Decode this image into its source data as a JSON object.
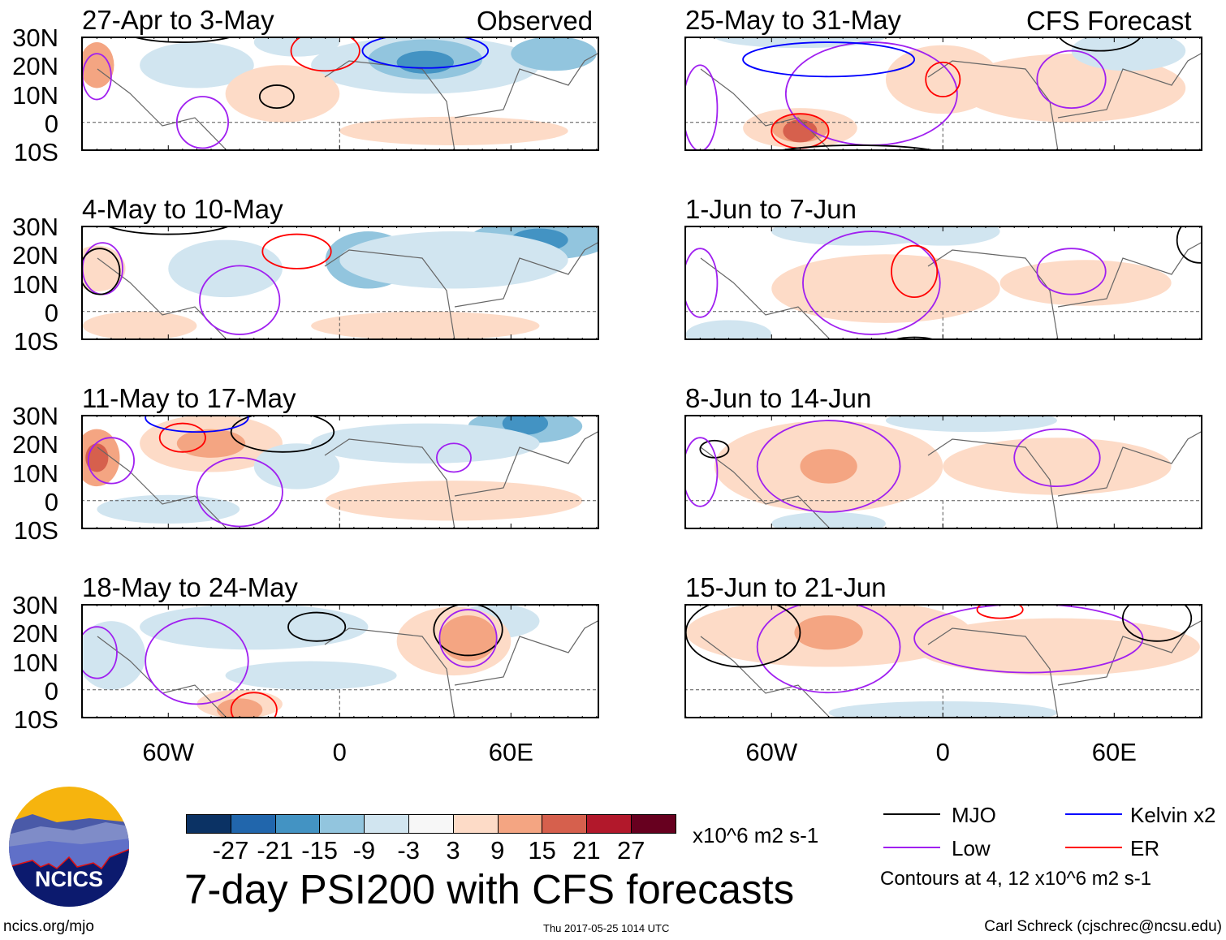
{
  "header": {
    "left_label": "Observed",
    "right_label": "CFS Forecast"
  },
  "lat_ticks": [
    "30N",
    "20N",
    "10N",
    "0",
    "10S"
  ],
  "lon_ticks": [
    "60W",
    "0",
    "60E"
  ],
  "panels": [
    {
      "title": "27-Apr to 3-May",
      "blobs": [
        [
          30,
          20,
          40,
          10,
          -1
        ],
        [
          30,
          22,
          20,
          7,
          -2
        ],
        [
          30,
          21,
          10,
          4,
          -3
        ],
        [
          -50,
          20,
          20,
          8,
          -1
        ],
        [
          75,
          24,
          15,
          6,
          -2
        ],
        [
          -20,
          10,
          20,
          10,
          1
        ],
        [
          40,
          -3,
          40,
          5,
          1
        ],
        [
          -85,
          20,
          6,
          8,
          2
        ],
        [
          -15,
          28,
          15,
          5,
          -1
        ]
      ],
      "contours": [
        [
          -22,
          9,
          6,
          4,
          "mjo"
        ],
        [
          -48,
          0,
          9,
          9,
          "low"
        ],
        [
          -85,
          16,
          5,
          8,
          "low"
        ],
        [
          -55,
          32,
          20,
          4,
          "mjo"
        ],
        [
          -5,
          25,
          12,
          7,
          "er"
        ],
        [
          30,
          25,
          22,
          6,
          "kelvin"
        ]
      ]
    },
    {
      "title": "4-May to 10-May",
      "blobs": [
        [
          10,
          18,
          15,
          10,
          -2
        ],
        [
          10,
          18,
          7,
          5,
          -3
        ],
        [
          70,
          25,
          25,
          7,
          -2
        ],
        [
          70,
          25,
          10,
          4,
          -3
        ],
        [
          -40,
          15,
          20,
          10,
          -1
        ],
        [
          40,
          18,
          40,
          10,
          -1
        ],
        [
          -85,
          15,
          10,
          8,
          1
        ],
        [
          30,
          -5,
          40,
          5,
          1
        ],
        [
          -70,
          -5,
          20,
          5,
          1
        ]
      ],
      "contours": [
        [
          -35,
          4,
          14,
          12,
          "low"
        ],
        [
          -83,
          15,
          7,
          9,
          "low"
        ],
        [
          -84,
          14,
          7,
          8,
          "mjo"
        ],
        [
          -60,
          33,
          25,
          6,
          "mjo"
        ],
        [
          -15,
          21,
          12,
          6,
          "er"
        ]
      ]
    },
    {
      "title": "11-May to 17-May",
      "blobs": [
        [
          -45,
          20,
          25,
          10,
          1
        ],
        [
          -45,
          20,
          12,
          5,
          2
        ],
        [
          -85,
          15,
          8,
          10,
          2
        ],
        [
          -85,
          15,
          4,
          5,
          3
        ],
        [
          65,
          26,
          20,
          6,
          -2
        ],
        [
          65,
          27,
          8,
          4,
          -3
        ],
        [
          30,
          20,
          40,
          7,
          -1
        ],
        [
          -15,
          12,
          15,
          8,
          -1
        ],
        [
          40,
          0,
          45,
          7,
          1
        ],
        [
          -60,
          -3,
          25,
          5,
          -1
        ]
      ],
      "contours": [
        [
          -20,
          24,
          18,
          7,
          "mjo"
        ],
        [
          -35,
          3,
          15,
          12,
          "low"
        ],
        [
          -80,
          14,
          8,
          8,
          "low"
        ],
        [
          -55,
          22,
          8,
          5,
          "er"
        ],
        [
          40,
          15,
          6,
          5,
          "low"
        ],
        [
          -50,
          29,
          18,
          5,
          "kelvin"
        ]
      ]
    },
    {
      "title": "18-May to 24-May",
      "blobs": [
        [
          -30,
          22,
          40,
          8,
          -1
        ],
        [
          55,
          24,
          15,
          6,
          -1
        ],
        [
          40,
          17,
          20,
          12,
          1
        ],
        [
          45,
          18,
          10,
          8,
          2
        ],
        [
          -35,
          -5,
          15,
          5,
          1
        ],
        [
          -35,
          -7,
          8,
          4,
          2
        ],
        [
          -80,
          12,
          12,
          12,
          -1
        ],
        [
          -10,
          5,
          30,
          5,
          -1
        ]
      ],
      "contours": [
        [
          -50,
          10,
          18,
          15,
          "low"
        ],
        [
          -85,
          13,
          7,
          9,
          "low"
        ],
        [
          -8,
          22,
          10,
          5,
          "mjo"
        ],
        [
          45,
          21,
          12,
          9,
          "mjo"
        ],
        [
          45,
          18,
          10,
          10,
          "low"
        ],
        [
          -30,
          -7,
          8,
          6,
          "er"
        ]
      ]
    },
    {
      "title": "25-May to 31-May",
      "blobs": [
        [
          -50,
          -2,
          20,
          7,
          1
        ],
        [
          -50,
          -2,
          10,
          5,
          2
        ],
        [
          -50,
          -3,
          6,
          4,
          3
        ],
        [
          0,
          15,
          20,
          12,
          1
        ],
        [
          45,
          12,
          40,
          12,
          1
        ],
        [
          65,
          25,
          20,
          7,
          -1
        ],
        [
          -50,
          30,
          30,
          4,
          -1
        ]
      ],
      "contours": [
        [
          -25,
          10,
          30,
          18,
          "low"
        ],
        [
          -85,
          5,
          6,
          15,
          "low"
        ],
        [
          45,
          15,
          12,
          10,
          "low"
        ],
        [
          0,
          15,
          6,
          6,
          "er"
        ],
        [
          -50,
          -3,
          10,
          6,
          "er"
        ],
        [
          -30,
          -13,
          35,
          5,
          "mjo"
        ],
        [
          55,
          32,
          15,
          7,
          "mjo"
        ],
        [
          -40,
          22,
          30,
          6,
          "kelvin"
        ]
      ]
    },
    {
      "title": "1-Jun to 7-Jun",
      "blobs": [
        [
          -20,
          8,
          40,
          12,
          1
        ],
        [
          50,
          10,
          30,
          8,
          1
        ],
        [
          -30,
          28,
          30,
          5,
          -1
        ],
        [
          0,
          28,
          20,
          5,
          -1
        ],
        [
          -75,
          -8,
          15,
          5,
          -1
        ]
      ],
      "contours": [
        [
          -25,
          10,
          24,
          18,
          "low"
        ],
        [
          45,
          14,
          12,
          8,
          "low"
        ],
        [
          -85,
          10,
          6,
          12,
          "low"
        ],
        [
          -10,
          14,
          8,
          9,
          "er"
        ],
        [
          -10,
          -12,
          10,
          3,
          "mjo"
        ],
        [
          90,
          25,
          8,
          8,
          "mjo"
        ]
      ]
    },
    {
      "title": "8-Jun to 14-Jun",
      "blobs": [
        [
          -40,
          12,
          40,
          16,
          1
        ],
        [
          -40,
          12,
          10,
          6,
          2
        ],
        [
          40,
          12,
          40,
          10,
          1
        ],
        [
          10,
          28,
          30,
          4,
          -1
        ],
        [
          -40,
          -8,
          20,
          4,
          -1
        ]
      ],
      "contours": [
        [
          -40,
          12,
          25,
          16,
          "low"
        ],
        [
          40,
          15,
          15,
          10,
          "low"
        ],
        [
          -80,
          18,
          5,
          3,
          "mjo"
        ],
        [
          -85,
          10,
          6,
          12,
          "low"
        ]
      ]
    },
    {
      "title": "15-Jun to 21-Jun",
      "blobs": [
        [
          -40,
          20,
          50,
          12,
          1
        ],
        [
          -40,
          20,
          12,
          6,
          2
        ],
        [
          40,
          15,
          50,
          10,
          1
        ],
        [
          0,
          -8,
          40,
          4,
          -1
        ]
      ],
      "contours": [
        [
          -40,
          15,
          25,
          16,
          "low"
        ],
        [
          30,
          18,
          40,
          12,
          "low"
        ],
        [
          -70,
          20,
          20,
          12,
          "mjo"
        ],
        [
          75,
          25,
          12,
          8,
          "mjo"
        ],
        [
          20,
          28,
          8,
          3,
          "er"
        ]
      ]
    }
  ],
  "colorbar": {
    "labels": [
      "-27",
      "-21",
      "-15",
      "-9",
      "-3",
      "3",
      "9",
      "15",
      "21",
      "27"
    ],
    "colors": [
      "#0b3264",
      "#2166ac",
      "#4393c3",
      "#92c5de",
      "#d1e5f0",
      "#f7f7f7",
      "#fddbc7",
      "#f4a582",
      "#d6604d",
      "#b2182b",
      "#67001f"
    ],
    "units": "x10^6 m2 s-1"
  },
  "legend": {
    "mjo": "MJO",
    "kelvin": "Kelvin x2",
    "low": "Low",
    "er": "ER",
    "contours_note": "Contours at 4, 12 x10^6 m2 s-1",
    "colors": {
      "mjo": "#000000",
      "kelvin": "#0000ff",
      "low": "#a020f0",
      "er": "#ff0000"
    }
  },
  "footer": {
    "title": "7-day PSI200 with CFS forecasts",
    "timestamp": "Thu 2017-05-25 1014 UTC",
    "url": "ncics.org/mjo",
    "credit": "Carl Schreck (cjschrec@ncsu.edu)",
    "logo_text": "NCICS"
  }
}
